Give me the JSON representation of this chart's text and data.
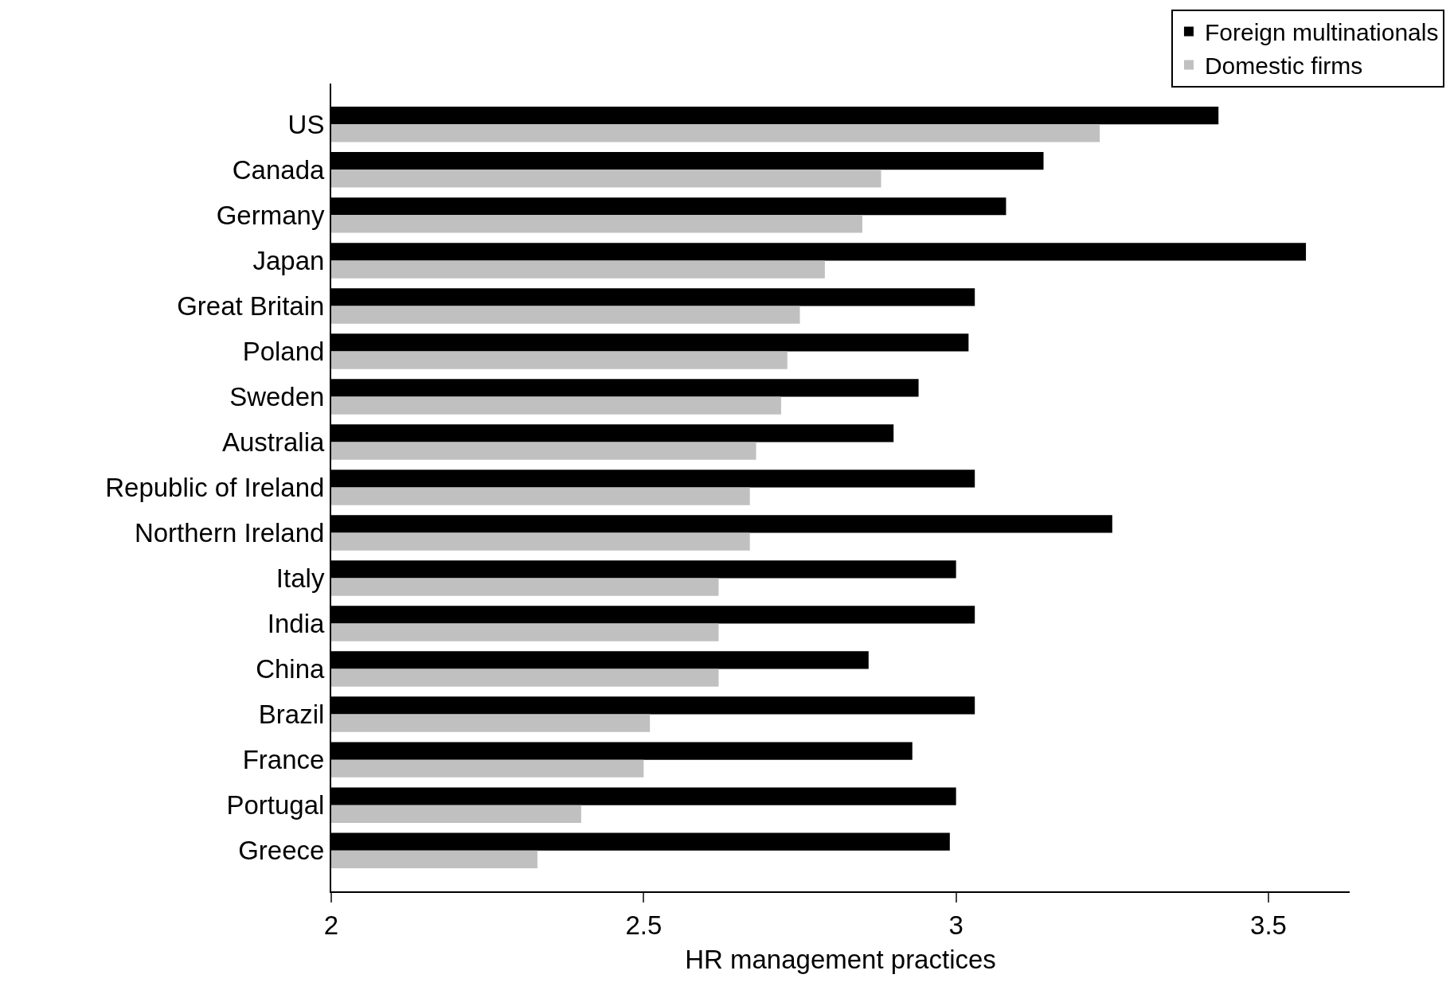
{
  "chart_data": {
    "type": "bar",
    "orientation": "horizontal",
    "xlabel": "HR management practices",
    "categories": [
      "US",
      "Canada",
      "Germany",
      "Japan",
      "Great Britain",
      "Poland",
      "Sweden",
      "Australia",
      "Republic of Ireland",
      "Northern Ireland",
      "Italy",
      "India",
      "China",
      "Brazil",
      "France",
      "Portugal",
      "Greece"
    ],
    "series": [
      {
        "name": "Foreign multinationals",
        "color": "#000000",
        "values": [
          3.42,
          3.14,
          3.08,
          3.56,
          3.03,
          3.02,
          2.94,
          2.9,
          3.03,
          3.25,
          3.0,
          3.03,
          2.86,
          3.03,
          2.93,
          3.0,
          2.99
        ]
      },
      {
        "name": "Domestic firms",
        "color": "#c0c0c0",
        "values": [
          3.23,
          2.88,
          2.85,
          2.79,
          2.75,
          2.73,
          2.72,
          2.68,
          2.67,
          2.67,
          2.62,
          2.62,
          2.62,
          2.51,
          2.5,
          2.4,
          2.33
        ]
      }
    ],
    "xlim": [
      2,
      3.63
    ],
    "xticks": [
      2,
      2.5,
      3,
      3.5
    ],
    "grid": false,
    "legend": "top right"
  }
}
